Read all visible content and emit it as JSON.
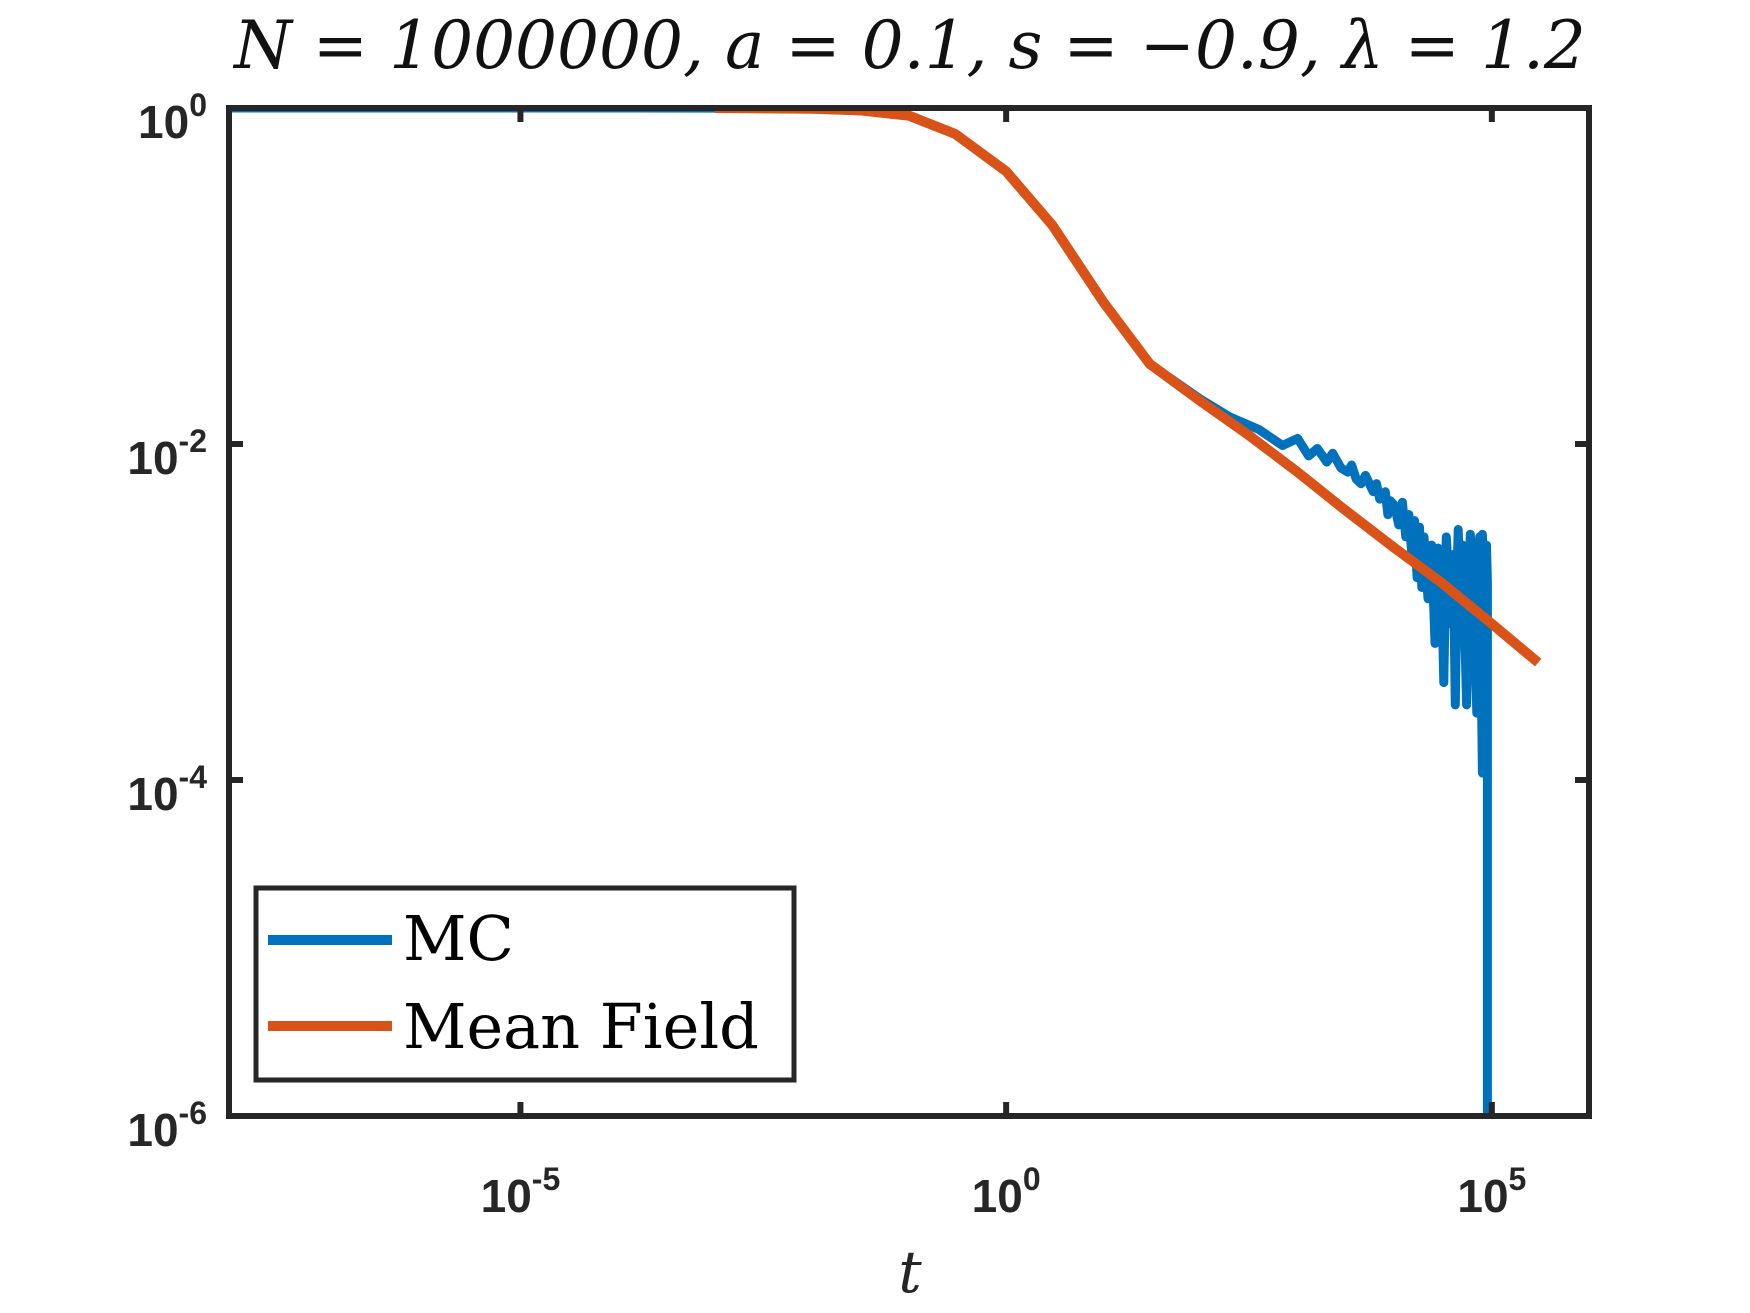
{
  "chart_data": {
    "type": "line",
    "title": "N = 1000000, a = 0.1, s = −0.9, λ = 1.2",
    "xlabel": "t",
    "ylabel": "",
    "xscale": "log",
    "yscale": "log",
    "xlim": [
      1e-08,
      1000000.0
    ],
    "ylim": [
      1e-06,
      1
    ],
    "xticks": [
      {
        "value": 1e-05,
        "base": "10",
        "exp": "-5"
      },
      {
        "value": 1,
        "base": "10",
        "exp": "0"
      },
      {
        "value": 100000.0,
        "base": "10",
        "exp": "5"
      }
    ],
    "yticks": [
      {
        "value": 1,
        "base": "10",
        "exp": "0"
      },
      {
        "value": 0.01,
        "base": "10",
        "exp": "-2"
      },
      {
        "value": 0.0001,
        "base": "10",
        "exp": "-4"
      },
      {
        "value": 1e-06,
        "base": "10",
        "exp": "-6"
      }
    ],
    "grid": false,
    "legend_position": "bottom-left",
    "series": [
      {
        "name": "MC",
        "color": "#0072BD",
        "x": [
          1e-08,
          0.0001,
          0.001,
          0.01,
          0.05,
          0.1,
          0.3,
          1,
          3,
          10,
          30,
          100,
          200,
          400,
          700,
          1000,
          1300,
          1600,
          2000,
          2300,
          2800,
          3300,
          3600,
          4000,
          4500,
          5000,
          6000,
          6500,
          7000,
          8000,
          8500,
          9000,
          10000,
          11000,
          12000,
          13000,
          14000,
          15000,
          16000,
          17000,
          18000,
          19000,
          20000,
          22000,
          24000,
          26000,
          28000,
          30000,
          32000,
          34000,
          36000,
          38000,
          40000,
          42000,
          44000,
          45000,
          48000,
          50000,
          55000,
          60000,
          65000,
          70000,
          75000,
          80000,
          80000,
          85000,
          88000,
          90000,
          90000
        ],
        "y": [
          1,
          1,
          0.999,
          0.99,
          0.95,
          0.9,
          0.7,
          0.42,
          0.2,
          0.07,
          0.03,
          0.0185,
          0.0145,
          0.0122,
          0.0098,
          0.0108,
          0.0085,
          0.0094,
          0.0078,
          0.0088,
          0.0072,
          0.0068,
          0.0075,
          0.0062,
          0.0058,
          0.0065,
          0.0052,
          0.0058,
          0.0047,
          0.0052,
          0.0038,
          0.0046,
          0.0043,
          0.0033,
          0.0045,
          0.0028,
          0.0038,
          0.0022,
          0.0035,
          0.0016,
          0.0032,
          0.0014,
          0.0028,
          0.0012,
          0.0025,
          0.00065,
          0.0024,
          0.0018,
          0.00038,
          0.0028,
          0.0015,
          0.00085,
          0.0022,
          0.00028,
          0.0018,
          0.0031,
          0.0009,
          0.0025,
          0.00028,
          0.0029,
          0.0014,
          0.00025,
          0.0028,
          0.00011,
          0.0029,
          0.00042,
          0.0025,
          0.0015,
          1e-06
        ]
      },
      {
        "name": "Mean Field",
        "color": "#D95319",
        "x": [
          0.001,
          0.01,
          0.03,
          0.1,
          0.3,
          1,
          3,
          10,
          30,
          100,
          300,
          1000,
          3000,
          10000,
          30000,
          100000,
          300000
        ],
        "y": [
          1,
          0.99,
          0.97,
          0.9,
          0.7,
          0.42,
          0.2,
          0.07,
          0.03,
          0.018,
          0.0115,
          0.0068,
          0.0041,
          0.0024,
          0.0015,
          0.00085,
          0.0005
        ]
      }
    ]
  }
}
